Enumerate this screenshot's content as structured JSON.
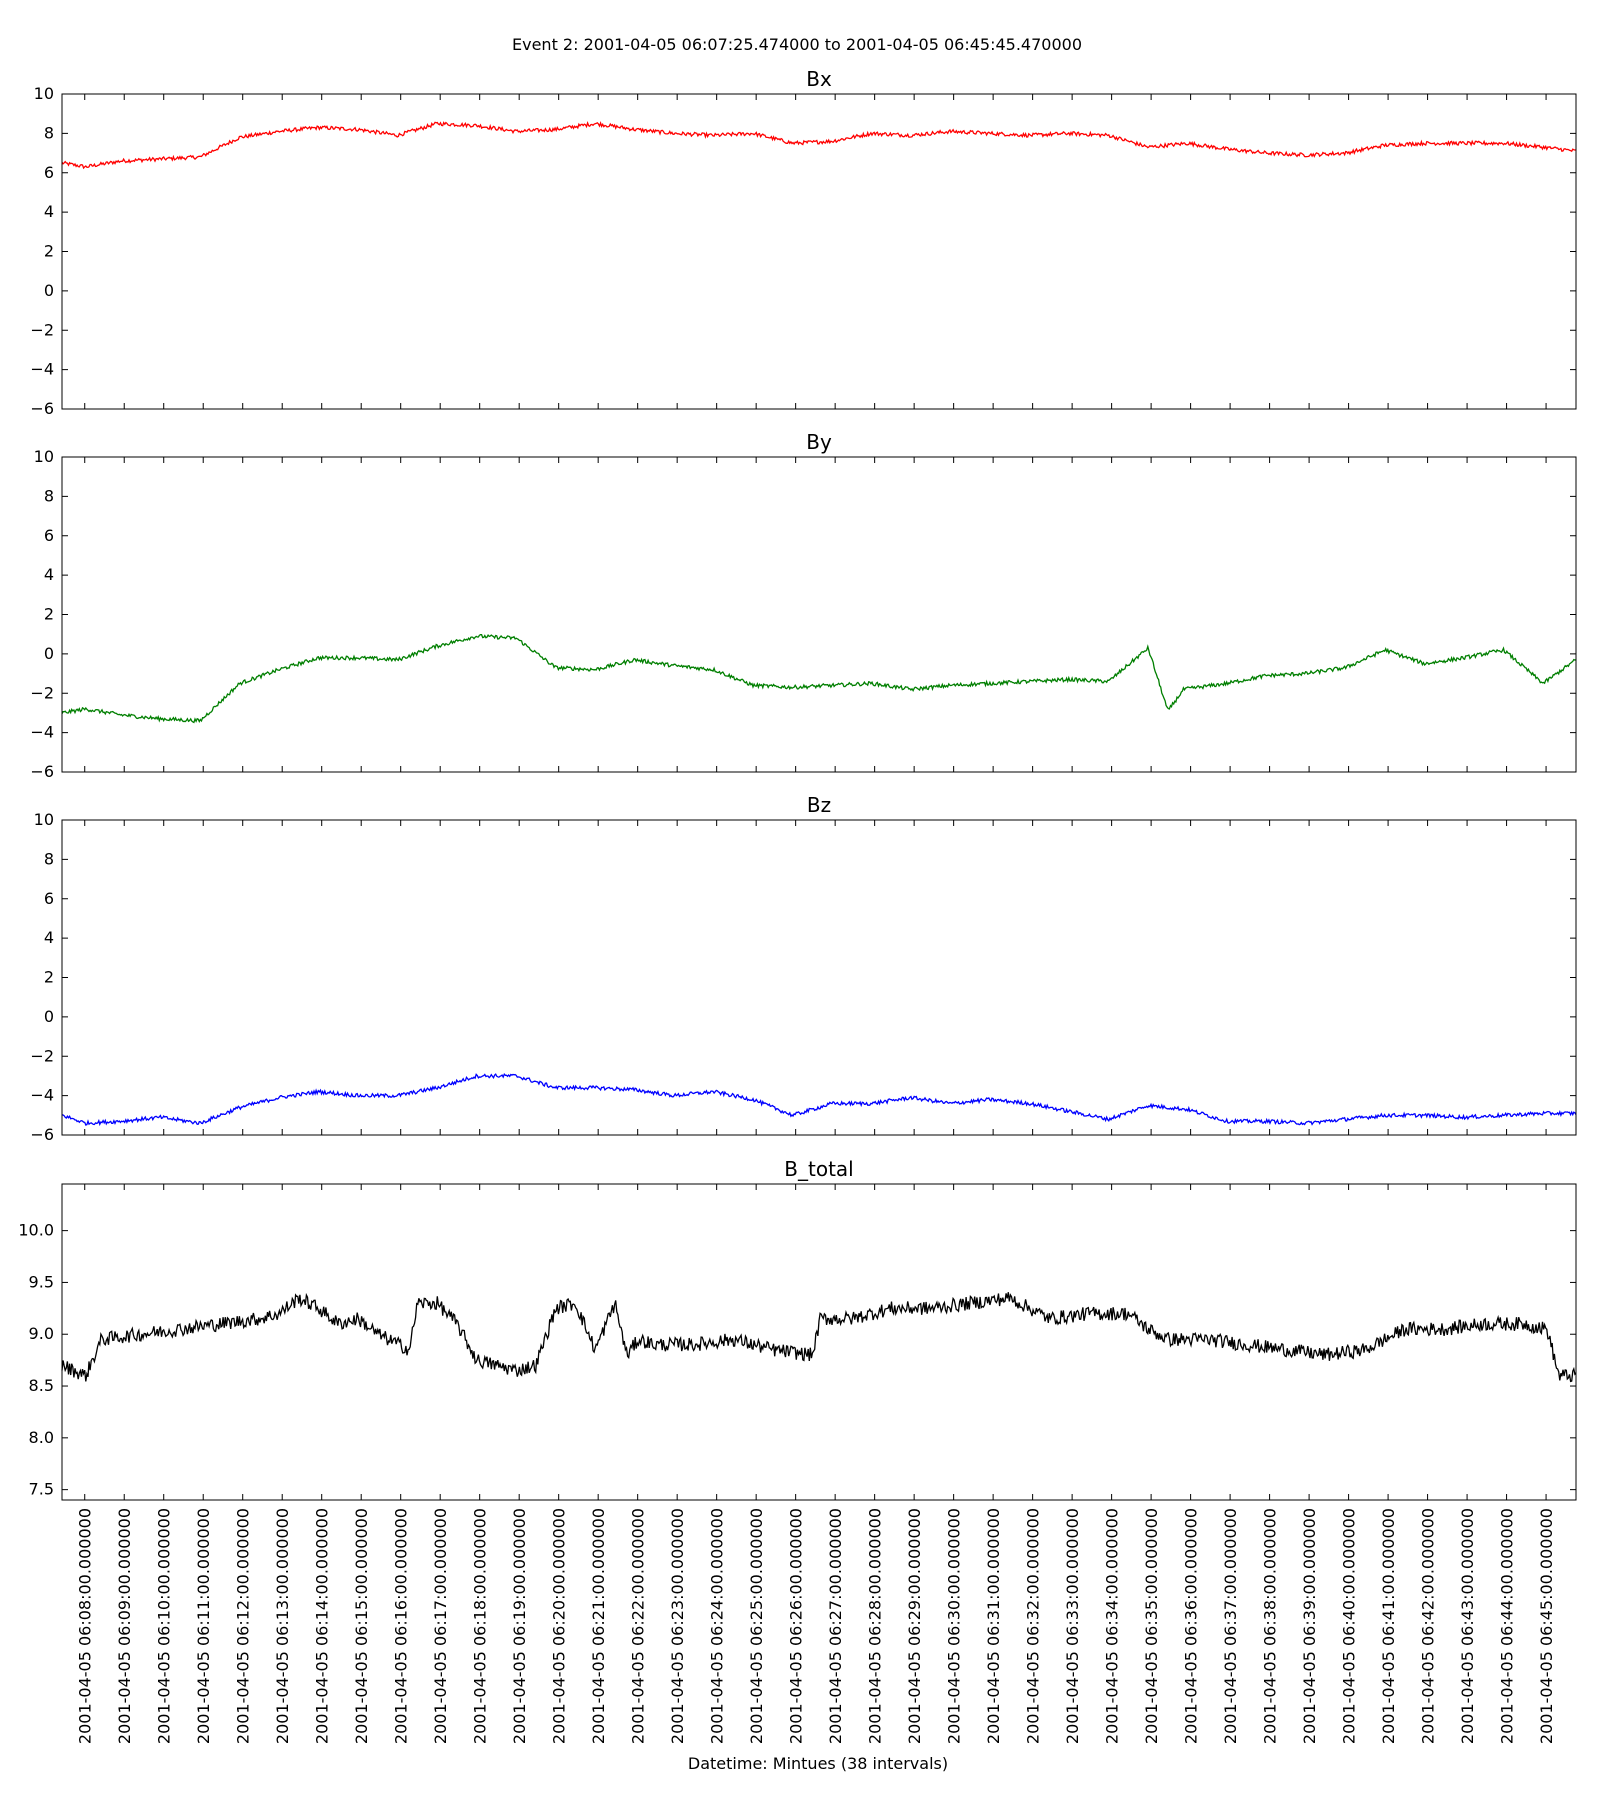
{
  "figure": {
    "suptitle": "Event 2: 2001-04-05 06:07:25.474000 to 2001-04-05 06:45:45.470000",
    "xlabel": "Datetime: Mintues (38 intervals)"
  },
  "chart_data": [
    {
      "type": "line",
      "title": "Bx",
      "color": "#ff0000",
      "xlim": [
        "2001-04-05 06:07:25.474",
        "2001-04-05 06:45:45.470"
      ],
      "ylim": [
        -6,
        10
      ],
      "yticks": [
        "10",
        "8",
        "6",
        "4",
        "2",
        "0",
        "−2",
        "−4",
        "−6"
      ],
      "yticks_values": [
        10,
        8,
        6,
        4,
        2,
        0,
        -2,
        -4,
        -6
      ],
      "x_minutes_from_start": [
        0,
        0.6,
        1.5,
        2.5,
        3.5,
        4.5,
        5.5,
        6.5,
        7.5,
        8.5,
        9.5,
        10.5,
        11.5,
        12.5,
        13.5,
        14.5,
        15.5,
        16.5,
        17.5,
        18.5,
        19.5,
        20.5,
        21.5,
        22.5,
        23.5,
        24.5,
        25.5,
        26.5,
        27.5,
        28.5,
        29.5,
        30.5,
        31.5,
        32.5,
        33.5,
        34.5,
        35.5,
        36.5,
        37.5,
        38.33
      ],
      "values": [
        6.5,
        6.3,
        6.6,
        6.7,
        6.8,
        7.8,
        8.1,
        8.3,
        8.2,
        7.9,
        8.5,
        8.4,
        8.1,
        8.2,
        8.5,
        8.2,
        8.0,
        7.9,
        8.0,
        7.5,
        7.6,
        8.0,
        7.9,
        8.1,
        8.0,
        7.9,
        8.0,
        7.9,
        7.3,
        7.5,
        7.2,
        7.0,
        6.9,
        7.0,
        7.4,
        7.5,
        7.5,
        7.5,
        7.3,
        7.1
      ]
    },
    {
      "type": "line",
      "title": "By",
      "color": "#007f00",
      "xlim": [
        "2001-04-05 06:07:25.474",
        "2001-04-05 06:45:45.470"
      ],
      "ylim": [
        -6,
        10
      ],
      "yticks": [
        "10",
        "8",
        "6",
        "4",
        "2",
        "0",
        "−2",
        "−4",
        "−6"
      ],
      "yticks_values": [
        10,
        8,
        6,
        4,
        2,
        0,
        -2,
        -4,
        -6
      ],
      "x_minutes_from_start": [
        0,
        0.6,
        1.5,
        2.5,
        3.5,
        4.5,
        5.5,
        6.5,
        7.5,
        8.5,
        9.5,
        10.5,
        11.5,
        12.5,
        13.5,
        14.5,
        15.5,
        16.5,
        17.5,
        18.5,
        19.5,
        20.5,
        21.5,
        22.5,
        23.5,
        24.5,
        25.5,
        26.5,
        27.5,
        28.0,
        28.4,
        29.5,
        30.5,
        31.5,
        32.5,
        33.5,
        34.5,
        35.5,
        36.5,
        37.5,
        38.33
      ],
      "values": [
        -3.0,
        -2.8,
        -3.1,
        -3.3,
        -3.4,
        -1.5,
        -0.8,
        -0.2,
        -0.2,
        -0.3,
        0.4,
        0.9,
        0.8,
        -0.7,
        -0.8,
        -0.3,
        -0.6,
        -0.8,
        -1.6,
        -1.7,
        -1.6,
        -1.5,
        -1.8,
        -1.6,
        -1.5,
        -1.4,
        -1.3,
        -1.4,
        0.3,
        -2.9,
        -1.8,
        -1.5,
        -1.1,
        -1.0,
        -0.7,
        0.2,
        -0.5,
        -0.2,
        0.2,
        -1.5,
        -0.3
      ]
    },
    {
      "type": "line",
      "title": "Bz",
      "color": "#0000ff",
      "xlim": [
        "2001-04-05 06:07:25.474",
        "2001-04-05 06:45:45.470"
      ],
      "ylim": [
        -6,
        10
      ],
      "yticks": [
        "10",
        "8",
        "6",
        "4",
        "2",
        "0",
        "−2",
        "−4",
        "−6"
      ],
      "yticks_values": [
        10,
        8,
        6,
        4,
        2,
        0,
        -2,
        -4,
        -6
      ],
      "x_minutes_from_start": [
        0,
        0.6,
        1.5,
        2.5,
        3.5,
        4.5,
        5.5,
        6.5,
        7.5,
        8.5,
        9.5,
        10.5,
        11.5,
        12.5,
        13.5,
        14.5,
        15.5,
        16.5,
        17.5,
        18.5,
        19.5,
        20.5,
        21.5,
        22.5,
        23.5,
        24.5,
        25.5,
        26.5,
        27.5,
        28.5,
        29.5,
        30.5,
        31.5,
        32.5,
        33.5,
        34.5,
        35.5,
        36.5,
        37.5,
        38.33
      ],
      "values": [
        -5.0,
        -5.4,
        -5.3,
        -5.1,
        -5.4,
        -4.6,
        -4.1,
        -3.8,
        -4.0,
        -4.0,
        -3.6,
        -3.0,
        -3.0,
        -3.6,
        -3.6,
        -3.7,
        -4.0,
        -3.8,
        -4.2,
        -5.0,
        -4.4,
        -4.4,
        -4.1,
        -4.4,
        -4.2,
        -4.4,
        -4.8,
        -5.2,
        -4.5,
        -4.7,
        -5.3,
        -5.3,
        -5.4,
        -5.2,
        -5.0,
        -5.0,
        -5.1,
        -5.0,
        -4.9,
        -4.9
      ]
    },
    {
      "type": "line",
      "title": "B_total",
      "color": "#000000",
      "xlim": [
        "2001-04-05 06:07:25.474",
        "2001-04-05 06:45:45.470"
      ],
      "ylim": [
        7.4,
        10.45
      ],
      "yticks": [
        "10.0",
        "9.5",
        "9.0",
        "8.5",
        "8.0",
        "7.5"
      ],
      "yticks_values": [
        10.0,
        9.5,
        9.0,
        8.5,
        8.0,
        7.5
      ],
      "x_minutes_from_start": [
        0,
        0.6,
        1.0,
        2.0,
        3.0,
        4.0,
        5.0,
        5.5,
        6.0,
        6.5,
        7.0,
        7.5,
        8.0,
        8.8,
        9.0,
        9.5,
        10.0,
        10.5,
        11.0,
        11.5,
        12.0,
        12.5,
        13.0,
        13.5,
        14.0,
        14.3,
        14.6,
        15.0,
        16.0,
        17.0,
        18.0,
        19.0,
        19.2,
        20.0,
        21.0,
        22.0,
        23.0,
        24.0,
        25.0,
        26.0,
        27.0,
        27.5,
        28.0,
        29.0,
        30.0,
        31.0,
        32.0,
        33.0,
        34.0,
        35.0,
        36.0,
        37.0,
        37.6,
        37.9,
        38.33
      ],
      "values": [
        8.7,
        8.6,
        8.95,
        9.0,
        9.05,
        9.1,
        9.15,
        9.2,
        9.35,
        9.25,
        9.1,
        9.15,
        9.0,
        8.85,
        9.3,
        9.3,
        9.1,
        8.75,
        8.7,
        8.65,
        8.7,
        9.25,
        9.3,
        8.85,
        9.3,
        8.8,
        8.95,
        8.9,
        8.9,
        8.95,
        8.85,
        8.8,
        9.15,
        9.15,
        9.25,
        9.25,
        9.3,
        9.35,
        9.15,
        9.2,
        9.2,
        9.05,
        8.95,
        8.95,
        8.9,
        8.85,
        8.8,
        8.85,
        9.05,
        9.05,
        9.1,
        9.1,
        9.05,
        8.6,
        8.6
      ]
    }
  ],
  "x_axis": {
    "tick_labels": [
      "2001-04-05 06:08:00.000000",
      "2001-04-05 06:09:00.000000",
      "2001-04-05 06:10:00.000000",
      "2001-04-05 06:11:00.000000",
      "2001-04-05 06:12:00.000000",
      "2001-04-05 06:13:00.000000",
      "2001-04-05 06:14:00.000000",
      "2001-04-05 06:15:00.000000",
      "2001-04-05 06:16:00.000000",
      "2001-04-05 06:17:00.000000",
      "2001-04-05 06:18:00.000000",
      "2001-04-05 06:19:00.000000",
      "2001-04-05 06:20:00.000000",
      "2001-04-05 06:21:00.000000",
      "2001-04-05 06:22:00.000000",
      "2001-04-05 06:23:00.000000",
      "2001-04-05 06:24:00.000000",
      "2001-04-05 06:25:00.000000",
      "2001-04-05 06:26:00.000000",
      "2001-04-05 06:27:00.000000",
      "2001-04-05 06:28:00.000000",
      "2001-04-05 06:29:00.000000",
      "2001-04-05 06:30:00.000000",
      "2001-04-05 06:31:00.000000",
      "2001-04-05 06:32:00.000000",
      "2001-04-05 06:33:00.000000",
      "2001-04-05 06:34:00.000000",
      "2001-04-05 06:35:00.000000",
      "2001-04-05 06:36:00.000000",
      "2001-04-05 06:37:00.000000",
      "2001-04-05 06:38:00.000000",
      "2001-04-05 06:39:00.000000",
      "2001-04-05 06:40:00.000000",
      "2001-04-05 06:41:00.000000",
      "2001-04-05 06:42:00.000000",
      "2001-04-05 06:43:00.000000",
      "2001-04-05 06:44:00.000000",
      "2001-04-05 06:45:00.000000"
    ],
    "first_tick_minutes_from_start": 0.5755,
    "tick_step_minutes": 1
  }
}
